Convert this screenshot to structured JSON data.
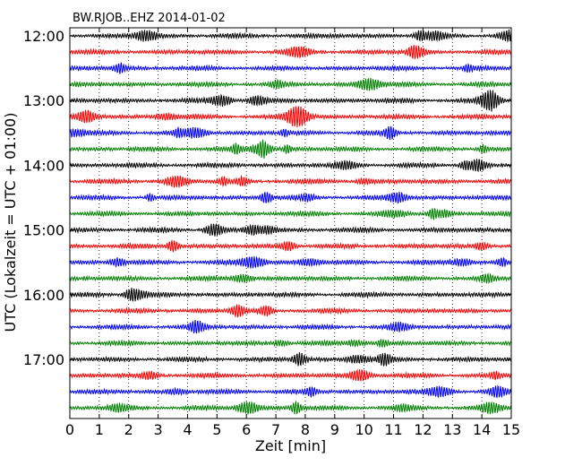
{
  "chart_data": {
    "type": "line",
    "title": "BW.RJOB..EHZ 2014-01-02",
    "xlabel": "Zeit  [min]",
    "ylabel": "UTC (Lokalzeit = UTC + 01:00)",
    "xlim": [
      0,
      15
    ],
    "x_ticks": [
      0,
      1,
      2,
      3,
      4,
      5,
      6,
      7,
      8,
      9,
      10,
      11,
      12,
      13,
      14,
      15
    ],
    "y_tick_labels": [
      "12:00",
      "13:00",
      "14:00",
      "15:00",
      "16:00",
      "17:00"
    ],
    "y_tick_rows": [
      0,
      4,
      8,
      12,
      16,
      20
    ],
    "trace_interval_min": 15,
    "start_time": "12:00",
    "colors": [
      "#000000",
      "#ff0000",
      "#0000ff",
      "#008000"
    ],
    "grid": "vertical dotted at each minute",
    "traces": [
      {
        "start": "12:00",
        "color": "#000000"
      },
      {
        "start": "12:15",
        "color": "#ff0000"
      },
      {
        "start": "12:30",
        "color": "#0000ff"
      },
      {
        "start": "12:45",
        "color": "#008000"
      },
      {
        "start": "13:00",
        "color": "#000000"
      },
      {
        "start": "13:15",
        "color": "#ff0000"
      },
      {
        "start": "13:30",
        "color": "#0000ff"
      },
      {
        "start": "13:45",
        "color": "#008000"
      },
      {
        "start": "14:00",
        "color": "#000000"
      },
      {
        "start": "14:15",
        "color": "#ff0000"
      },
      {
        "start": "14:30",
        "color": "#0000ff"
      },
      {
        "start": "14:45",
        "color": "#008000"
      },
      {
        "start": "15:00",
        "color": "#000000"
      },
      {
        "start": "15:15",
        "color": "#ff0000"
      },
      {
        "start": "15:30",
        "color": "#0000ff"
      },
      {
        "start": "15:45",
        "color": "#008000"
      },
      {
        "start": "16:00",
        "color": "#000000"
      },
      {
        "start": "16:15",
        "color": "#ff0000"
      },
      {
        "start": "16:30",
        "color": "#0000ff"
      },
      {
        "start": "16:45",
        "color": "#008000"
      },
      {
        "start": "17:00",
        "color": "#000000"
      },
      {
        "start": "17:15",
        "color": "#ff0000"
      },
      {
        "start": "17:30",
        "color": "#0000ff"
      },
      {
        "start": "17:45",
        "color": "#008000"
      }
    ]
  }
}
